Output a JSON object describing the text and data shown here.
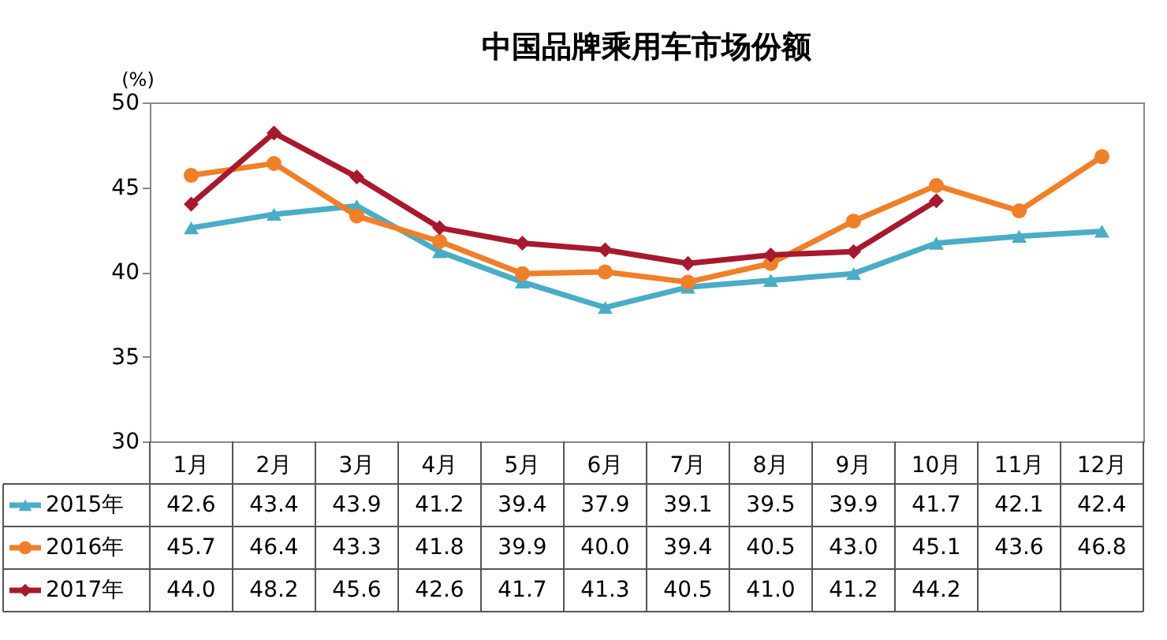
{
  "chart_data": {
    "type": "line",
    "title": "中国品牌乘用车市场份额",
    "ylabel": "(%)",
    "categories": [
      "1月",
      "2月",
      "3月",
      "4月",
      "5月",
      "6月",
      "7月",
      "8月",
      "9月",
      "10月",
      "11月",
      "12月"
    ],
    "ylim": [
      30,
      50
    ],
    "yticks": [
      30,
      35,
      40,
      45,
      50
    ],
    "grid": false,
    "legend": "bottom left",
    "line_style": "solid",
    "series": [
      {
        "name": "2015年",
        "color": "#4bacc6",
        "marker": "triangle",
        "values": [
          42.6,
          43.4,
          43.9,
          41.2,
          39.4,
          37.9,
          39.1,
          39.5,
          39.9,
          41.7,
          42.1,
          42.4
        ],
        "value_labels": [
          "42.6",
          "43.4",
          "43.9",
          "41.2",
          "39.4",
          "37.9",
          "39.1",
          "39.5",
          "39.9",
          "41.7",
          "42.1",
          "42.4"
        ]
      },
      {
        "name": "2016年",
        "color": "#f07f2a",
        "marker": "circle",
        "values": [
          45.7,
          46.4,
          43.3,
          41.8,
          39.9,
          40.0,
          39.4,
          40.5,
          43.0,
          45.1,
          43.6,
          46.8
        ],
        "value_labels": [
          "45.7",
          "46.4",
          "43.3",
          "41.8",
          "39.9",
          "40.0",
          "39.4",
          "40.5",
          "43.0",
          "45.1",
          "43.6",
          "46.8"
        ]
      },
      {
        "name": "2017年",
        "color": "#a6192e",
        "marker": "diamond",
        "values": [
          44.0,
          48.2,
          45.6,
          42.6,
          41.7,
          41.3,
          40.5,
          41.0,
          41.2,
          44.2,
          null,
          null
        ],
        "value_labels": [
          "44.0",
          "48.2",
          "45.6",
          "42.6",
          "41.7",
          "41.3",
          "40.5",
          "41.0",
          "41.2",
          "44.2",
          null,
          null
        ]
      }
    ]
  }
}
